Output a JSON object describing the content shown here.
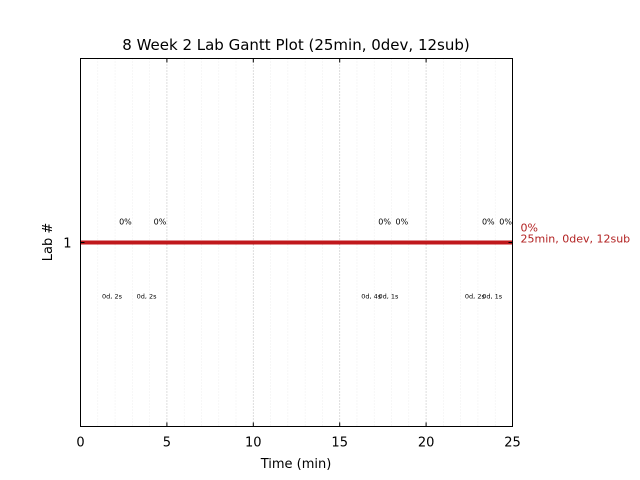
{
  "chart_data": {
    "type": "bar",
    "title": "8 Week 2 Lab Gantt Plot (25min, 0dev, 12sub)",
    "xlabel": "Time (min)",
    "ylabel": "Lab #",
    "xlim": [
      0,
      25
    ],
    "ylim": [
      0,
      2
    ],
    "x_ticks": [
      0,
      5,
      10,
      15,
      20,
      25
    ],
    "x_tick_labels": [
      "0",
      "5",
      "10",
      "15",
      "20",
      "25"
    ],
    "y_ticks": [
      1
    ],
    "y_tick_labels": [
      "1"
    ],
    "grid": {
      "major_x": true,
      "minor_x": true
    },
    "bar": {
      "lab": 1,
      "start": 0,
      "end": 25,
      "color": "#c0181c"
    },
    "right_annotations": [
      "0%",
      "25min, 0dev, 12sub"
    ],
    "annotations_above": [
      {
        "x": 2.6,
        "text": "0%"
      },
      {
        "x": 4.6,
        "text": "0%"
      },
      {
        "x": 17.6,
        "text": "0%"
      },
      {
        "x": 18.6,
        "text": "0%"
      },
      {
        "x": 23.6,
        "text": "0%"
      },
      {
        "x": 24.6,
        "text": "0%"
      }
    ],
    "annotations_below": [
      {
        "x": 2.4,
        "text": "0d, 2s"
      },
      {
        "x": 4.4,
        "text": "0d, 2s"
      },
      {
        "x": 17.4,
        "text": "0d, 4s"
      },
      {
        "x": 18.4,
        "text": "0d, 1s"
      },
      {
        "x": 23.4,
        "text": "0d, 2s"
      },
      {
        "x": 24.4,
        "text": "0d, 1s"
      }
    ]
  }
}
